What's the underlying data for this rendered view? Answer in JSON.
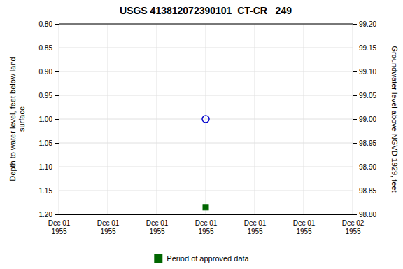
{
  "chart_data": {
    "type": "scatter",
    "title": "USGS 413812072390101  CT-CR   249",
    "y_label": "Depth to water level, feet below land\nsurface",
    "y2_label": "Groundwater level above NGVD 1929, feet",
    "categories": [
      "Dec 01\n1955",
      "Dec 01\n1955",
      "Dec 01\n1955",
      "Dec 01\n1955",
      "Dec 01\n1955",
      "Dec 01\n1955",
      "Dec 02\n1955"
    ],
    "series": [
      {
        "color": "#0000cc",
        "marker": "open-circle",
        "values": [
          null,
          null,
          null,
          1.0,
          null,
          null,
          null
        ]
      },
      {
        "name": "Period of approved data",
        "color": "#006600",
        "marker": "square",
        "values": [
          null,
          null,
          null,
          1.185,
          null,
          null,
          null
        ]
      }
    ],
    "ylim": [
      1.2,
      0.8
    ],
    "yticks": [
      {
        "value": 0.8,
        "label": "0.80"
      },
      {
        "value": 0.85,
        "label": "0.85"
      },
      {
        "value": 0.9,
        "label": "0.90"
      },
      {
        "value": 0.95,
        "label": "0.95"
      },
      {
        "value": 1.0,
        "label": "1.00"
      },
      {
        "value": 1.05,
        "label": "1.05"
      },
      {
        "value": 1.1,
        "label": "1.10"
      },
      {
        "value": 1.15,
        "label": "1.15"
      },
      {
        "value": 1.2,
        "label": "1.20"
      }
    ],
    "y2lim": [
      98.8,
      99.2
    ],
    "y2ticks": [
      {
        "value": 98.8,
        "label": "98.80"
      },
      {
        "value": 98.85,
        "label": "98.85"
      },
      {
        "value": 98.9,
        "label": "98.90"
      },
      {
        "value": 98.95,
        "label": "98.95"
      },
      {
        "value": 99.0,
        "label": "99.00"
      },
      {
        "value": 99.05,
        "label": "99.05"
      },
      {
        "value": 99.1,
        "label": "99.10"
      },
      {
        "value": 99.15,
        "label": "99.15"
      },
      {
        "value": 99.2,
        "label": "99.20"
      }
    ],
    "grid": true,
    "legend": "bottom"
  }
}
